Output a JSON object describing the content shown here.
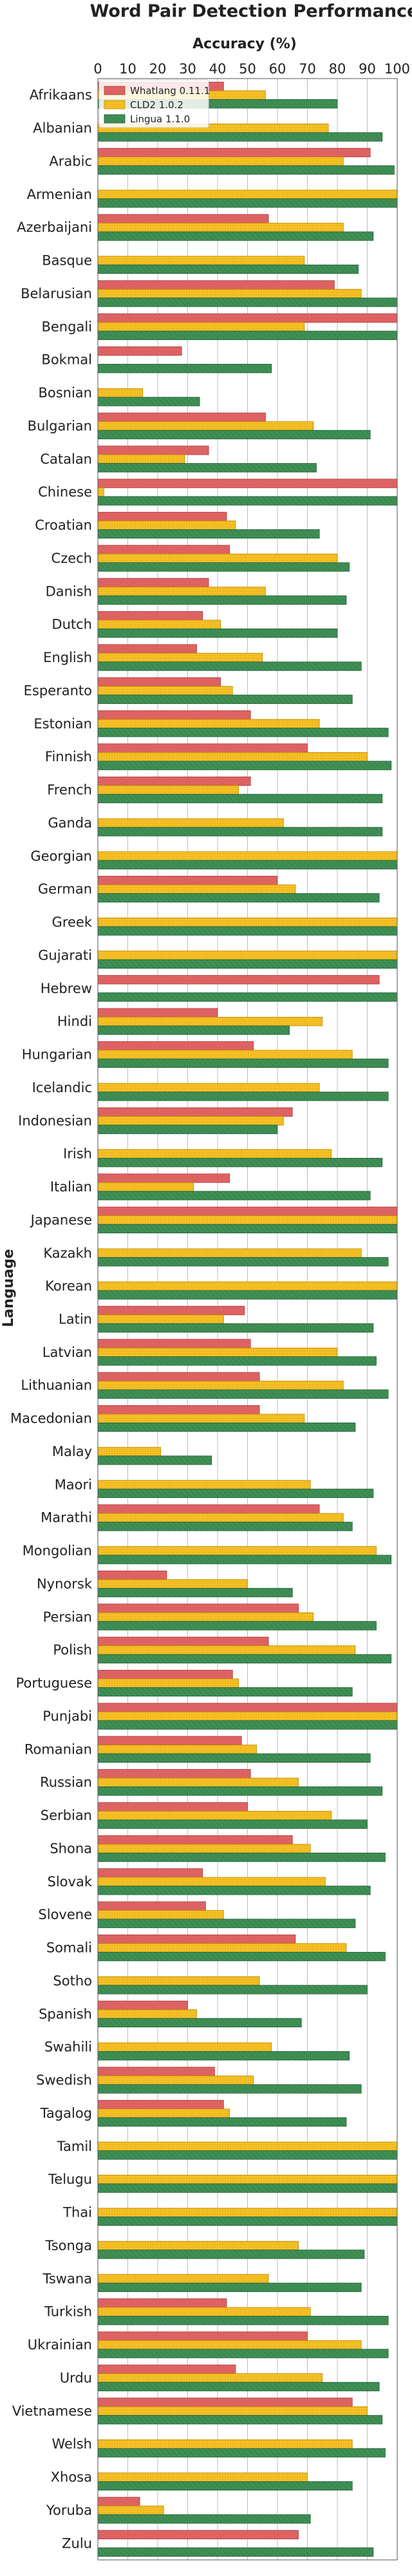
{
  "chart_data": {
    "type": "bar",
    "orientation": "horizontal",
    "title": "Word Pair Detection Performance",
    "xlabel": "Accuracy (%)",
    "ylabel": "Language",
    "xlim": [
      0,
      100
    ],
    "xticks": [
      0,
      10,
      20,
      30,
      40,
      50,
      60,
      70,
      80,
      90,
      100
    ],
    "grid": "vertical",
    "legend": "top-left",
    "categories": [
      "Afrikaans",
      "Albanian",
      "Arabic",
      "Armenian",
      "Azerbaijani",
      "Basque",
      "Belarusian",
      "Bengali",
      "Bokmal",
      "Bosnian",
      "Bulgarian",
      "Catalan",
      "Chinese",
      "Croatian",
      "Czech",
      "Danish",
      "Dutch",
      "English",
      "Esperanto",
      "Estonian",
      "Finnish",
      "French",
      "Ganda",
      "Georgian",
      "German",
      "Greek",
      "Gujarati",
      "Hebrew",
      "Hindi",
      "Hungarian",
      "Icelandic",
      "Indonesian",
      "Irish",
      "Italian",
      "Japanese",
      "Kazakh",
      "Korean",
      "Latin",
      "Latvian",
      "Lithuanian",
      "Macedonian",
      "Malay",
      "Maori",
      "Marathi",
      "Mongolian",
      "Nynorsk",
      "Persian",
      "Polish",
      "Portuguese",
      "Punjabi",
      "Romanian",
      "Russian",
      "Serbian",
      "Shona",
      "Slovak",
      "Slovene",
      "Somali",
      "Sotho",
      "Spanish",
      "Swahili",
      "Swedish",
      "Tagalog",
      "Tamil",
      "Telugu",
      "Thai",
      "Tsonga",
      "Tswana",
      "Turkish",
      "Ukrainian",
      "Urdu",
      "Vietnamese",
      "Welsh",
      "Xhosa",
      "Yoruba",
      "Zulu"
    ],
    "series": [
      {
        "name": "Whatlang 0.11.1",
        "color": "#e06666",
        "values": [
          42,
          0,
          91,
          0,
          57,
          0,
          79,
          100,
          28,
          0,
          56,
          37,
          100,
          43,
          44,
          37,
          35,
          33,
          41,
          51,
          70,
          51,
          0,
          0,
          60,
          0,
          0,
          94,
          40,
          52,
          0,
          65,
          0,
          44,
          100,
          0,
          0,
          49,
          51,
          54,
          54,
          0,
          0,
          74,
          0,
          23,
          67,
          57,
          45,
          100,
          48,
          51,
          50,
          65,
          35,
          36,
          66,
          0,
          30,
          0,
          39,
          42,
          0,
          0,
          0,
          0,
          0,
          43,
          70,
          46,
          85,
          0,
          0,
          14,
          67
        ]
      },
      {
        "name": "CLD2 1.0.2",
        "color": "#f6c026",
        "values": [
          56,
          77,
          82,
          100,
          82,
          69,
          88,
          69,
          0,
          15,
          72,
          29,
          2,
          46,
          80,
          56,
          41,
          55,
          45,
          74,
          90,
          47,
          62,
          100,
          66,
          100,
          100,
          0,
          75,
          85,
          74,
          62,
          78,
          32,
          100,
          88,
          100,
          42,
          80,
          82,
          69,
          21,
          71,
          82,
          93,
          50,
          72,
          86,
          47,
          100,
          53,
          67,
          78,
          71,
          76,
          42,
          83,
          54,
          33,
          58,
          52,
          44,
          100,
          100,
          100,
          67,
          57,
          71,
          88,
          75,
          90,
          85,
          70,
          22,
          0
        ]
      },
      {
        "name": "Lingua 1.1.0",
        "color": "#3f8f55",
        "values": [
          80,
          95,
          99,
          100,
          92,
          87,
          100,
          100,
          58,
          34,
          91,
          73,
          100,
          74,
          84,
          83,
          80,
          88,
          85,
          97,
          98,
          95,
          95,
          100,
          94,
          100,
          100,
          100,
          64,
          97,
          97,
          60,
          95,
          91,
          100,
          97,
          100,
          92,
          93,
          97,
          86,
          38,
          92,
          85,
          98,
          65,
          93,
          98,
          85,
          100,
          91,
          95,
          90,
          96,
          91,
          86,
          96,
          90,
          68,
          84,
          88,
          83,
          100,
          100,
          100,
          89,
          88,
          97,
          97,
          94,
          95,
          96,
          85,
          71,
          92
        ]
      }
    ]
  }
}
